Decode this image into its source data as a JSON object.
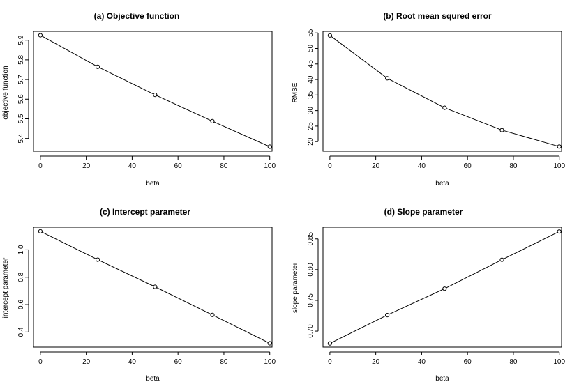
{
  "chart_data": [
    {
      "type": "line",
      "title": "(a) Objective function",
      "xlabel": "beta",
      "ylabel": "objective function",
      "x": [
        0,
        25,
        50,
        75,
        100
      ],
      "values": [
        5.925,
        5.765,
        5.622,
        5.488,
        5.358
      ],
      "xlim": [
        -3,
        101
      ],
      "ylim": [
        5.335,
        5.945
      ],
      "xticks": [
        0,
        20,
        40,
        60,
        80,
        100
      ],
      "yticks": [
        5.4,
        5.5,
        5.6,
        5.7,
        5.8,
        5.9
      ],
      "xtick_labels": [
        "0",
        "20",
        "40",
        "60",
        "80",
        "100"
      ],
      "ytick_labels": [
        "5.4",
        "5.5",
        "5.6",
        "5.7",
        "5.8",
        "5.9"
      ],
      "grid": false,
      "markers": "open-circle"
    },
    {
      "type": "line",
      "title": "(b) Root mean squred error",
      "xlabel": "beta",
      "ylabel": "RMSE",
      "x": [
        0,
        25,
        50,
        75,
        100
      ],
      "values": [
        54.2,
        40.4,
        30.9,
        23.7,
        18.4
      ],
      "xlim": [
        -3,
        101
      ],
      "ylim": [
        16.9,
        55.5
      ],
      "xticks": [
        0,
        20,
        40,
        60,
        80,
        100
      ],
      "yticks": [
        20,
        25,
        30,
        35,
        40,
        45,
        50,
        55
      ],
      "xtick_labels": [
        "0",
        "20",
        "40",
        "60",
        "80",
        "100"
      ],
      "ytick_labels": [
        "20",
        "25",
        "30",
        "35",
        "40",
        "45",
        "50",
        "55"
      ],
      "grid": false,
      "markers": "open-circle"
    },
    {
      "type": "line",
      "title": "(c) Intercept parameter",
      "xlabel": "beta",
      "ylabel": "intercept parameter",
      "x": [
        0,
        25,
        50,
        75,
        100
      ],
      "values": [
        1.135,
        0.928,
        0.73,
        0.525,
        0.318
      ],
      "xlim": [
        -3,
        101
      ],
      "ylim": [
        0.29,
        1.165
      ],
      "xticks": [
        0,
        20,
        40,
        60,
        80,
        100
      ],
      "yticks": [
        0.4,
        0.6,
        0.8,
        1.0
      ],
      "xtick_labels": [
        "0",
        "20",
        "40",
        "60",
        "80",
        "100"
      ],
      "ytick_labels": [
        "0.4",
        "0.6",
        "0.8",
        "1.0"
      ],
      "grid": false,
      "markers": "open-circle"
    },
    {
      "type": "line",
      "title": "(d) Slope parameter",
      "xlabel": "beta",
      "ylabel": "slope parameter",
      "x": [
        0,
        25,
        50,
        75,
        100
      ],
      "values": [
        0.68,
        0.726,
        0.769,
        0.816,
        0.862
      ],
      "xlim": [
        -3,
        101
      ],
      "ylim": [
        0.674,
        0.869
      ],
      "xticks": [
        0,
        20,
        40,
        60,
        80,
        100
      ],
      "yticks": [
        0.7,
        0.75,
        0.8,
        0.85
      ],
      "xtick_labels": [
        "0",
        "20",
        "40",
        "60",
        "80",
        "100"
      ],
      "ytick_labels": [
        "0.70",
        "0.75",
        "0.80",
        "0.85"
      ],
      "grid": false,
      "markers": "open-circle"
    }
  ]
}
